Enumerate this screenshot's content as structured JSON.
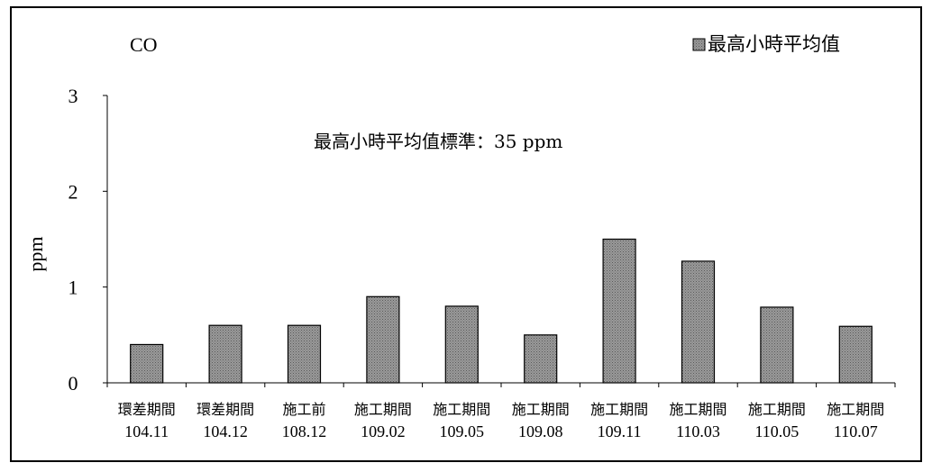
{
  "chart_data": {
    "type": "bar",
    "title": "CO",
    "ylabel": "ppm",
    "ylim": [
      0,
      3
    ],
    "yticks": [
      "0",
      "1",
      "2",
      "3"
    ],
    "annotation": "最高小時平均值標準：35 ppm",
    "legend": {
      "position": "top-right",
      "label": "最高小時平均值"
    },
    "grid": false,
    "categories": [
      {
        "line1": "環差期間",
        "line2": "104.11"
      },
      {
        "line1": "環差期間",
        "line2": "104.12"
      },
      {
        "line1": "施工前",
        "line2": "108.12"
      },
      {
        "line1": "施工期間",
        "line2": "109.02"
      },
      {
        "line1": "施工期間",
        "line2": "109.05"
      },
      {
        "line1": "施工期間",
        "line2": "109.08"
      },
      {
        "line1": "施工期間",
        "line2": "109.11"
      },
      {
        "line1": "施工期間",
        "line2": "110.03"
      },
      {
        "line1": "施工期間",
        "line2": "110.05"
      },
      {
        "line1": "施工期間",
        "line2": "110.07"
      }
    ],
    "series": [
      {
        "name": "最高小時平均值",
        "values": [
          0.4,
          0.6,
          0.6,
          0.9,
          0.8,
          0.5,
          1.5,
          1.27,
          0.79,
          0.59
        ]
      }
    ],
    "colors": {
      "bar_fill": "#8a8a8a",
      "bar_stroke": "#000000"
    }
  }
}
